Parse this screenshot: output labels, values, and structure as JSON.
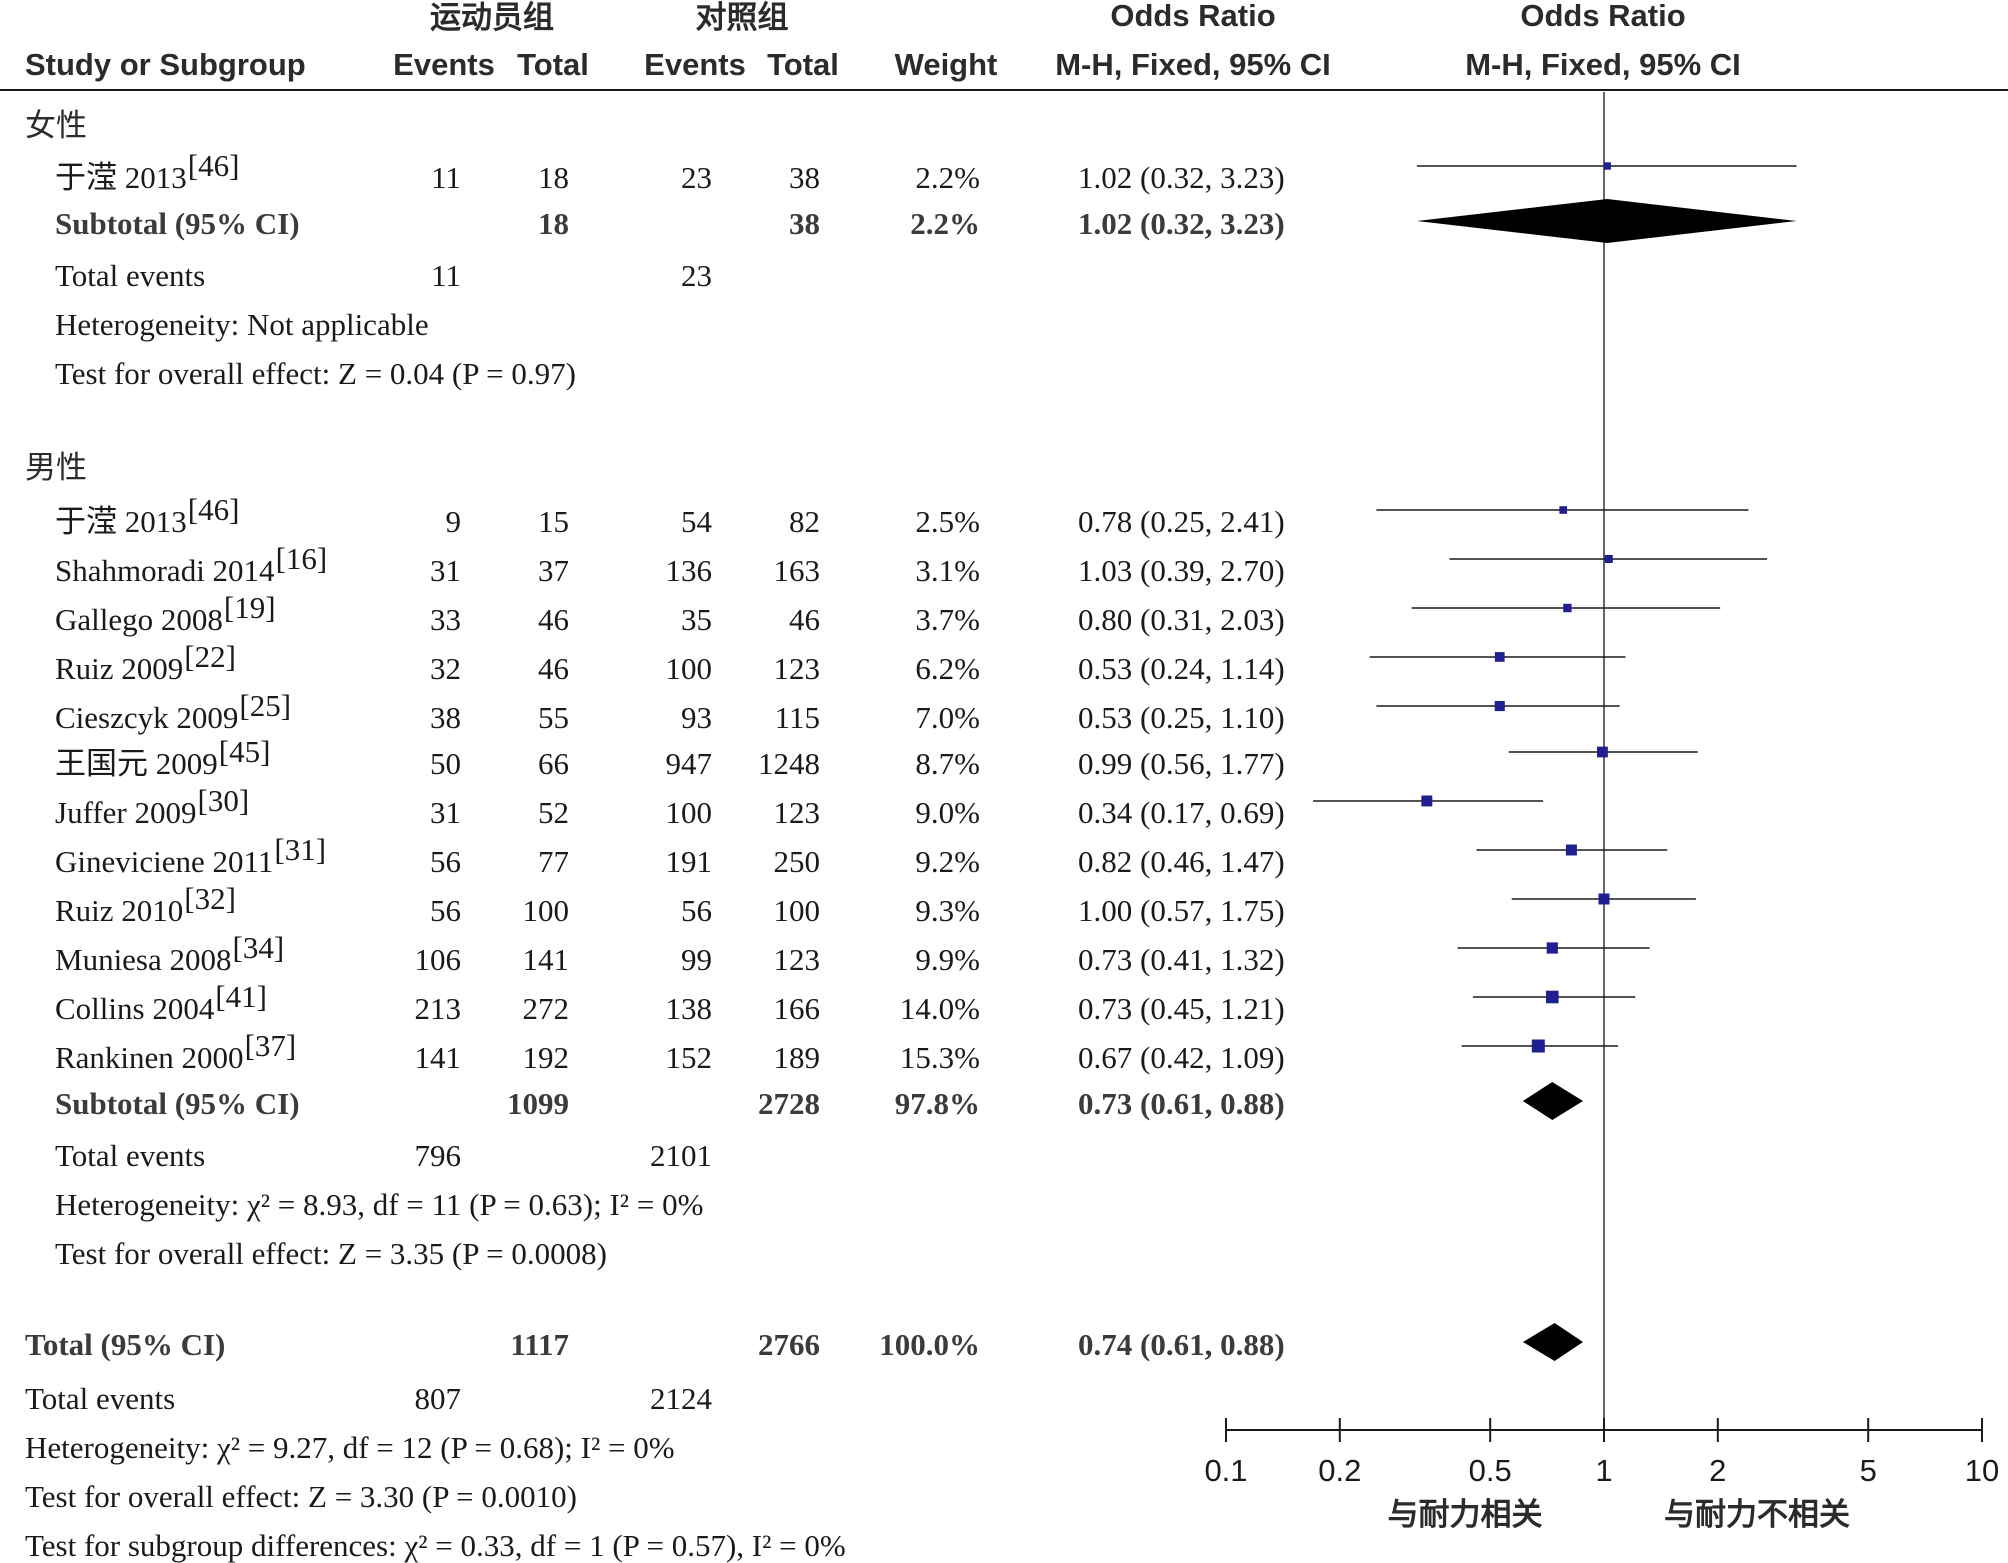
{
  "header": {
    "group1_title": "运动员组",
    "group2_title": "对照组",
    "col_study": "Study or Subgroup",
    "col_events1": "Events",
    "col_total1": "Total",
    "col_events2": "Events",
    "col_total2": "Total",
    "col_weight": "Weight",
    "col_or_text_1": "Odds Ratio",
    "col_or_text_2": "M-H, Fixed, 95% CI",
    "col_or_plot_1": "Odds Ratio",
    "col_or_plot_2": "M-H, Fixed, 95% CI"
  },
  "subgroups": [
    {
      "name": "女性",
      "studies": [
        {
          "study": "于滢 2013",
          "ref": "[46]",
          "e1": "11",
          "t1": "18",
          "e2": "23",
          "t2": "38",
          "weight": "2.2%",
          "ci_text": "1.02 (0.32, 3.23)"
        }
      ],
      "subtotal": {
        "label": "Subtotal (95% CI)",
        "t1": "18",
        "t2": "38",
        "weight": "2.2%",
        "ci_text": "1.02 (0.32, 3.23)"
      },
      "total_events": {
        "label": "Total events",
        "e1": "11",
        "e2": "23"
      },
      "heterogeneity": "Heterogeneity: Not applicable",
      "overall": "Test for overall effect: Z = 0.04 (P = 0.97)"
    },
    {
      "name": "男性",
      "studies": [
        {
          "study": "于滢 2013",
          "ref": "[46]",
          "e1": "9",
          "t1": "15",
          "e2": "54",
          "t2": "82",
          "weight": "2.5%",
          "ci_text": "0.78 (0.25, 2.41)"
        },
        {
          "study": "Shahmoradi 2014",
          "ref": "[16]",
          "e1": "31",
          "t1": "37",
          "e2": "136",
          "t2": "163",
          "weight": "3.1%",
          "ci_text": "1.03 (0.39, 2.70)"
        },
        {
          "study": "Gallego 2008",
          "ref": "[19]",
          "e1": "33",
          "t1": "46",
          "e2": "35",
          "t2": "46",
          "weight": "3.7%",
          "ci_text": "0.80 (0.31, 2.03)"
        },
        {
          "study": "Ruiz 2009",
          "ref": "[22]",
          "e1": "32",
          "t1": "46",
          "e2": "100",
          "t2": "123",
          "weight": "6.2%",
          "ci_text": "0.53 (0.24, 1.14)"
        },
        {
          "study": "Cieszcyk 2009",
          "ref": "[25]",
          "e1": "38",
          "t1": "55",
          "e2": "93",
          "t2": "115",
          "weight": "7.0%",
          "ci_text": "0.53 (0.25, 1.10)"
        },
        {
          "study": "王国元 2009",
          "ref": "[45]",
          "e1": "50",
          "t1": "66",
          "e2": "947",
          "t2": "1248",
          "weight": "8.7%",
          "ci_text": "0.99 (0.56, 1.77)"
        },
        {
          "study": "Juffer 2009",
          "ref": "[30]",
          "e1": "31",
          "t1": "52",
          "e2": "100",
          "t2": "123",
          "weight": "9.0%",
          "ci_text": "0.34 (0.17, 0.69)"
        },
        {
          "study": "Gineviciene 2011",
          "ref": "[31]",
          "e1": "56",
          "t1": "77",
          "e2": "191",
          "t2": "250",
          "weight": "9.2%",
          "ci_text": "0.82 (0.46, 1.47)"
        },
        {
          "study": "Ruiz 2010",
          "ref": "[32]",
          "e1": "56",
          "t1": "100",
          "e2": "56",
          "t2": "100",
          "weight": "9.3%",
          "ci_text": "1.00 (0.57, 1.75)"
        },
        {
          "study": "Muniesa 2008",
          "ref": "[34]",
          "e1": "106",
          "t1": "141",
          "e2": "99",
          "t2": "123",
          "weight": "9.9%",
          "ci_text": "0.73 (0.41, 1.32)"
        },
        {
          "study": "Collins 2004",
          "ref": "[41]",
          "e1": "213",
          "t1": "272",
          "e2": "138",
          "t2": "166",
          "weight": "14.0%",
          "ci_text": "0.73 (0.45, 1.21)"
        },
        {
          "study": "Rankinen 2000",
          "ref": "[37]",
          "e1": "141",
          "t1": "192",
          "e2": "152",
          "t2": "189",
          "weight": "15.3%",
          "ci_text": "0.67 (0.42, 1.09)"
        }
      ],
      "subtotal": {
        "label": "Subtotal (95% CI)",
        "t1": "1099",
        "t2": "2728",
        "weight": "97.8%",
        "ci_text": "0.73 (0.61, 0.88)"
      },
      "total_events": {
        "label": "Total events",
        "e1": "796",
        "e2": "2101"
      },
      "heterogeneity": "Heterogeneity: χ² = 8.93, df = 11 (P = 0.63); I² = 0%",
      "overall": "Test for overall effect: Z = 3.35 (P = 0.0008)"
    }
  ],
  "total": {
    "label": "Total (95% CI)",
    "t1": "1117",
    "t2": "2766",
    "weight": "100.0%",
    "ci_text": "0.74 (0.61, 0.88)",
    "events_label": "Total events",
    "e1": "807",
    "e2": "2124",
    "heterogeneity": "Heterogeneity: χ² = 9.27, df = 12 (P = 0.68); I² = 0%",
    "overall": "Test for overall effect: Z = 3.30 (P = 0.0010)",
    "subgroup_diff": "Test for subgroup differences: χ² = 0.33, df = 1 (P = 0.57), I² = 0%"
  },
  "axis": {
    "favours_left": "与耐力相关",
    "favours_right": "与耐力不相关"
  },
  "colors": {
    "square": "#1f1f8f",
    "diamond": "#000000",
    "line": "#1a1a1a"
  },
  "chart_data": {
    "type": "forest",
    "scale": "log",
    "xlim": [
      0.1,
      10
    ],
    "ticks": [
      0.1,
      0.2,
      0.5,
      1,
      2,
      5,
      10
    ],
    "tick_labels": [
      "0.1",
      "0.2",
      "0.5",
      "1",
      "2",
      "5",
      "10"
    ],
    "null_line": 1,
    "studies": [
      {
        "label": "于滢 2013",
        "or": 1.02,
        "lo": 0.32,
        "hi": 3.23,
        "weight": 2.2
      },
      {
        "label": "于滢 2013",
        "or": 0.78,
        "lo": 0.25,
        "hi": 2.41,
        "weight": 2.5
      },
      {
        "label": "Shahmoradi 2014",
        "or": 1.03,
        "lo": 0.39,
        "hi": 2.7,
        "weight": 3.1
      },
      {
        "label": "Gallego 2008",
        "or": 0.8,
        "lo": 0.31,
        "hi": 2.03,
        "weight": 3.7
      },
      {
        "label": "Ruiz 2009",
        "or": 0.53,
        "lo": 0.24,
        "hi": 1.14,
        "weight": 6.2
      },
      {
        "label": "Cieszcyk 2009",
        "or": 0.53,
        "lo": 0.25,
        "hi": 1.1,
        "weight": 7.0
      },
      {
        "label": "王国元 2009",
        "or": 0.99,
        "lo": 0.56,
        "hi": 1.77,
        "weight": 8.7
      },
      {
        "label": "Juffer 2009",
        "or": 0.34,
        "lo": 0.17,
        "hi": 0.69,
        "weight": 9.0
      },
      {
        "label": "Gineviciene 2011",
        "or": 0.82,
        "lo": 0.46,
        "hi": 1.47,
        "weight": 9.2
      },
      {
        "label": "Ruiz 2010",
        "or": 1.0,
        "lo": 0.57,
        "hi": 1.75,
        "weight": 9.3
      },
      {
        "label": "Muniesa 2008",
        "or": 0.73,
        "lo": 0.41,
        "hi": 1.32,
        "weight": 9.9
      },
      {
        "label": "Collins 2004",
        "or": 0.73,
        "lo": 0.45,
        "hi": 1.21,
        "weight": 14.0
      },
      {
        "label": "Rankinen 2000",
        "or": 0.67,
        "lo": 0.42,
        "hi": 1.09,
        "weight": 15.3
      }
    ],
    "pooled": [
      {
        "label": "Subtotal 女性",
        "or": 1.02,
        "lo": 0.32,
        "hi": 3.23
      },
      {
        "label": "Subtotal 男性",
        "or": 0.73,
        "lo": 0.61,
        "hi": 0.88
      },
      {
        "label": "Total",
        "or": 0.74,
        "lo": 0.61,
        "hi": 0.88
      }
    ]
  }
}
